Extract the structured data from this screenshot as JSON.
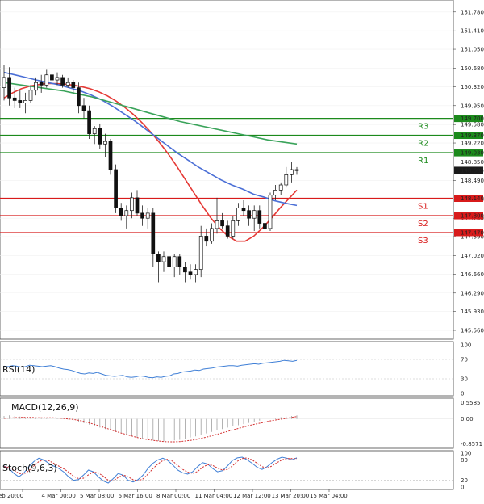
{
  "colors": {
    "bull": "#2e8b57",
    "bear": "#d32f2f",
    "wick": "#222222",
    "ma_fast": "#e53935",
    "ma_mid": "#4b6fd6",
    "ma_slow": "#3aa35a",
    "resistance": "#1c8a1c",
    "support": "#d81b1b",
    "rsi": "#3f7fd6",
    "macd_signal": "#d32f2f",
    "macd_hist": "#9e9e9e",
    "stoch_k": "#3f7fd6",
    "stoch_d": "#d32f2f"
  },
  "chart_data": [
    {
      "type": "candlestick",
      "ylim": [
        145.45,
        151.95
      ],
      "price_ticks": [
        "151.780",
        "151.410",
        "151.050",
        "150.680",
        "150.320",
        "149.950",
        "149.580",
        "149.220",
        "148.850",
        "148.490",
        "148.120",
        "147.750",
        "147.390",
        "147.020",
        "146.660",
        "146.290",
        "145.930",
        "145.560"
      ],
      "current_price": "148.685",
      "levels": [
        {
          "label": "R3",
          "value": "149.700",
          "kind": "resistance"
        },
        {
          "label": "R2",
          "value": "149.370",
          "kind": "resistance"
        },
        {
          "label": "R1",
          "value": "149.030",
          "kind": "resistance"
        },
        {
          "label": "S1",
          "value": "148.140",
          "kind": "support"
        },
        {
          "label": "S2",
          "value": "147.800",
          "kind": "support"
        },
        {
          "label": "S3",
          "value": "147.470",
          "kind": "support"
        }
      ],
      "x_labels": [
        "eb 20:00",
        "4 Mar 00:00",
        "5 Mar 08:00",
        "6 Mar 16:00",
        "8 Mar 00:00",
        "11 Mar 04:00",
        "12 Mar 12:00",
        "13 Mar 20:00",
        "15 Mar 04:00"
      ],
      "candles": [
        {
          "o": 150.3,
          "h": 150.75,
          "l": 150.05,
          "c": 150.5
        },
        {
          "o": 150.5,
          "h": 150.7,
          "l": 149.95,
          "c": 150.1
        },
        {
          "o": 150.1,
          "h": 150.3,
          "l": 149.9,
          "c": 150.05
        },
        {
          "o": 150.05,
          "h": 150.25,
          "l": 149.9,
          "c": 150.0
        },
        {
          "o": 150.0,
          "h": 150.2,
          "l": 149.8,
          "c": 150.05
        },
        {
          "o": 150.05,
          "h": 150.35,
          "l": 150.0,
          "c": 150.25
        },
        {
          "o": 150.25,
          "h": 150.5,
          "l": 150.15,
          "c": 150.4
        },
        {
          "o": 150.4,
          "h": 150.55,
          "l": 150.2,
          "c": 150.35
        },
        {
          "o": 150.35,
          "h": 150.65,
          "l": 150.3,
          "c": 150.55
        },
        {
          "o": 150.55,
          "h": 150.6,
          "l": 150.4,
          "c": 150.45
        },
        {
          "o": 150.45,
          "h": 150.6,
          "l": 150.35,
          "c": 150.5
        },
        {
          "o": 150.5,
          "h": 150.55,
          "l": 150.3,
          "c": 150.35
        },
        {
          "o": 150.35,
          "h": 150.5,
          "l": 150.3,
          "c": 150.4
        },
        {
          "o": 150.4,
          "h": 150.45,
          "l": 150.2,
          "c": 150.3
        },
        {
          "o": 150.3,
          "h": 150.4,
          "l": 149.8,
          "c": 149.95
        },
        {
          "o": 149.95,
          "h": 150.1,
          "l": 149.7,
          "c": 149.85
        },
        {
          "o": 149.85,
          "h": 149.95,
          "l": 149.3,
          "c": 149.4
        },
        {
          "o": 149.4,
          "h": 149.55,
          "l": 149.2,
          "c": 149.5
        },
        {
          "o": 149.5,
          "h": 149.6,
          "l": 149.1,
          "c": 149.2
        },
        {
          "o": 149.2,
          "h": 149.4,
          "l": 148.95,
          "c": 149.25
        },
        {
          "o": 149.25,
          "h": 149.3,
          "l": 148.6,
          "c": 148.7
        },
        {
          "o": 148.7,
          "h": 148.8,
          "l": 147.85,
          "c": 147.95
        },
        {
          "o": 147.95,
          "h": 148.05,
          "l": 147.7,
          "c": 147.8
        },
        {
          "o": 147.8,
          "h": 148.0,
          "l": 147.55,
          "c": 147.9
        },
        {
          "o": 147.9,
          "h": 148.25,
          "l": 147.75,
          "c": 148.15
        },
        {
          "o": 148.15,
          "h": 148.3,
          "l": 147.8,
          "c": 147.85
        },
        {
          "o": 147.85,
          "h": 148.0,
          "l": 147.6,
          "c": 147.75
        },
        {
          "o": 147.75,
          "h": 147.95,
          "l": 147.55,
          "c": 147.85
        },
        {
          "o": 147.85,
          "h": 147.95,
          "l": 146.8,
          "c": 147.05
        },
        {
          "o": 147.05,
          "h": 147.1,
          "l": 146.5,
          "c": 146.9
        },
        {
          "o": 146.9,
          "h": 147.1,
          "l": 146.7,
          "c": 147.0
        },
        {
          "o": 147.0,
          "h": 147.1,
          "l": 146.75,
          "c": 146.8
        },
        {
          "o": 146.8,
          "h": 147.05,
          "l": 146.6,
          "c": 147.0
        },
        {
          "o": 147.0,
          "h": 147.05,
          "l": 146.65,
          "c": 146.8
        },
        {
          "o": 146.8,
          "h": 146.9,
          "l": 146.5,
          "c": 146.7
        },
        {
          "o": 146.7,
          "h": 146.85,
          "l": 146.55,
          "c": 146.65
        },
        {
          "o": 146.65,
          "h": 146.85,
          "l": 146.5,
          "c": 146.75
        },
        {
          "o": 146.75,
          "h": 147.6,
          "l": 146.6,
          "c": 147.4
        },
        {
          "o": 147.4,
          "h": 147.55,
          "l": 147.2,
          "c": 147.3
        },
        {
          "o": 147.3,
          "h": 147.65,
          "l": 147.25,
          "c": 147.55
        },
        {
          "o": 147.55,
          "h": 148.15,
          "l": 147.45,
          "c": 147.7
        },
        {
          "o": 147.7,
          "h": 147.85,
          "l": 147.55,
          "c": 147.6
        },
        {
          "o": 147.6,
          "h": 147.7,
          "l": 147.35,
          "c": 147.4
        },
        {
          "o": 147.4,
          "h": 147.8,
          "l": 147.35,
          "c": 147.7
        },
        {
          "o": 147.7,
          "h": 148.05,
          "l": 147.6,
          "c": 147.95
        },
        {
          "o": 147.95,
          "h": 148.1,
          "l": 147.8,
          "c": 147.9
        },
        {
          "o": 147.9,
          "h": 148.0,
          "l": 147.6,
          "c": 147.75
        },
        {
          "o": 147.75,
          "h": 148.0,
          "l": 147.5,
          "c": 147.9
        },
        {
          "o": 147.9,
          "h": 148.0,
          "l": 147.55,
          "c": 147.65
        },
        {
          "o": 147.65,
          "h": 147.8,
          "l": 147.5,
          "c": 147.55
        },
        {
          "o": 147.55,
          "h": 148.25,
          "l": 147.5,
          "c": 148.2
        },
        {
          "o": 148.2,
          "h": 148.4,
          "l": 148.1,
          "c": 148.3
        },
        {
          "o": 148.3,
          "h": 148.45,
          "l": 148.2,
          "c": 148.4
        },
        {
          "o": 148.4,
          "h": 148.75,
          "l": 148.35,
          "c": 148.6
        },
        {
          "o": 148.6,
          "h": 148.85,
          "l": 148.45,
          "c": 148.7
        },
        {
          "o": 148.7,
          "h": 148.75,
          "l": 148.6,
          "c": 148.68
        }
      ],
      "moving_averages": [
        {
          "values": [
            150.1,
            150.2,
            150.28,
            150.33,
            150.36,
            150.38,
            150.38,
            150.37,
            150.35,
            150.32,
            150.28,
            150.22,
            150.14,
            150.04,
            149.92,
            149.78,
            149.62,
            149.44,
            149.24,
            149.02,
            148.78,
            148.52,
            148.26,
            148.0,
            147.76,
            147.56,
            147.4,
            147.3,
            147.3,
            147.4,
            147.56,
            147.74,
            147.94,
            148.12,
            148.3
          ],
          "color_key": "ma_fast"
        },
        {
          "values": [
            150.6,
            150.55,
            150.5,
            150.45,
            150.4,
            150.36,
            150.3,
            150.24,
            150.16,
            150.06,
            149.94,
            149.8,
            149.66,
            149.5,
            149.34,
            149.18,
            149.02,
            148.88,
            148.74,
            148.62,
            148.5,
            148.4,
            148.32,
            148.22,
            148.16,
            148.09,
            148.04,
            148.0
          ],
          "color_key": "ma_mid"
        },
        {
          "values": [
            150.4,
            150.36,
            150.32,
            150.28,
            150.24,
            150.18,
            150.12,
            150.04,
            149.96,
            149.88,
            149.8,
            149.72,
            149.64,
            149.58,
            149.52,
            149.46,
            149.4,
            149.34,
            149.28,
            149.24,
            149.2
          ],
          "color_key": "ma_slow"
        }
      ]
    },
    {
      "type": "line",
      "title": "RSI(14)",
      "ylim": [
        0,
        100
      ],
      "ticks": [
        "100",
        "70",
        "30",
        "0"
      ],
      "values": [
        56,
        55,
        57,
        56,
        54,
        55,
        58,
        57,
        56,
        55,
        56,
        57,
        55,
        52,
        50,
        49,
        47,
        44,
        41,
        40,
        42,
        41,
        43,
        40,
        37,
        36,
        35,
        36,
        37,
        34,
        33,
        34,
        36,
        35,
        33,
        32,
        34,
        33,
        35,
        36,
        40,
        41,
        44,
        45,
        46,
        48,
        47,
        50,
        51,
        52,
        54,
        55,
        56,
        57,
        57,
        56,
        58,
        59,
        60,
        61,
        60,
        62,
        63,
        64,
        65,
        66,
        68,
        67,
        66,
        68
      ]
    },
    {
      "type": "bar",
      "title": "MACD(12,26,9)",
      "ylim": [
        -0.9,
        0.6
      ],
      "ticks": [
        "0.5585",
        "0.00",
        "-0.8571"
      ],
      "histogram": [
        0.1,
        0.12,
        0.1,
        0.08,
        0.05,
        0.03,
        0.02,
        0.02,
        0.04,
        0.05,
        0.03,
        0.01,
        -0.02,
        -0.05,
        -0.1,
        -0.15,
        -0.2,
        -0.25,
        -0.3,
        -0.35,
        -0.4,
        -0.45,
        -0.5,
        -0.55,
        -0.6,
        -0.65,
        -0.7,
        -0.72,
        -0.74,
        -0.76,
        -0.78,
        -0.76,
        -0.74,
        -0.72,
        -0.68,
        -0.64,
        -0.6,
        -0.55,
        -0.5,
        -0.45,
        -0.4,
        -0.35,
        -0.3,
        -0.25,
        -0.22,
        -0.18,
        -0.14,
        -0.1,
        -0.06,
        -0.03,
        0.0,
        0.03,
        0.06,
        0.08,
        0.1,
        0.12
      ],
      "signal": [
        0.02,
        0.03,
        0.04,
        0.05,
        0.05,
        0.05,
        0.04,
        0.04,
        0.04,
        0.04,
        0.03,
        0.02,
        0.0,
        -0.02,
        -0.05,
        -0.09,
        -0.14,
        -0.19,
        -0.25,
        -0.31,
        -0.37,
        -0.43,
        -0.49,
        -0.54,
        -0.59,
        -0.64,
        -0.68,
        -0.71,
        -0.74,
        -0.76,
        -0.78,
        -0.79,
        -0.79,
        -0.78,
        -0.76,
        -0.74,
        -0.71,
        -0.67,
        -0.63,
        -0.58,
        -0.53,
        -0.48,
        -0.43,
        -0.38,
        -0.33,
        -0.28,
        -0.23,
        -0.19,
        -0.15,
        -0.11,
        -0.07,
        -0.04,
        -0.01,
        0.02,
        0.05,
        0.08
      ]
    },
    {
      "type": "line",
      "title": "Stoch(9,6,3)",
      "ylim": [
        0,
        100
      ],
      "ticks": [
        "100",
        "80",
        "20",
        "0"
      ],
      "k": [
        62,
        55,
        40,
        30,
        42,
        60,
        75,
        85,
        80,
        70,
        62,
        55,
        45,
        30,
        20,
        22,
        35,
        50,
        45,
        30,
        18,
        12,
        25,
        40,
        35,
        20,
        15,
        22,
        35,
        55,
        70,
        80,
        85,
        78,
        65,
        50,
        42,
        38,
        45,
        60,
        72,
        68,
        55,
        45,
        48,
        62,
        78,
        86,
        88,
        80,
        70,
        58,
        52,
        60,
        72,
        82,
        88,
        85,
        80,
        86
      ],
      "d": [
        60,
        58,
        50,
        40,
        38,
        48,
        62,
        75,
        80,
        78,
        70,
        62,
        54,
        44,
        32,
        25,
        26,
        36,
        44,
        42,
        32,
        20,
        18,
        28,
        36,
        30,
        22,
        18,
        24,
        38,
        54,
        68,
        78,
        82,
        76,
        64,
        52,
        44,
        40,
        46,
        58,
        66,
        64,
        56,
        50,
        52,
        62,
        76,
        84,
        86,
        80,
        70,
        60,
        56,
        62,
        72,
        80,
        84,
        84,
        84
      ]
    }
  ]
}
